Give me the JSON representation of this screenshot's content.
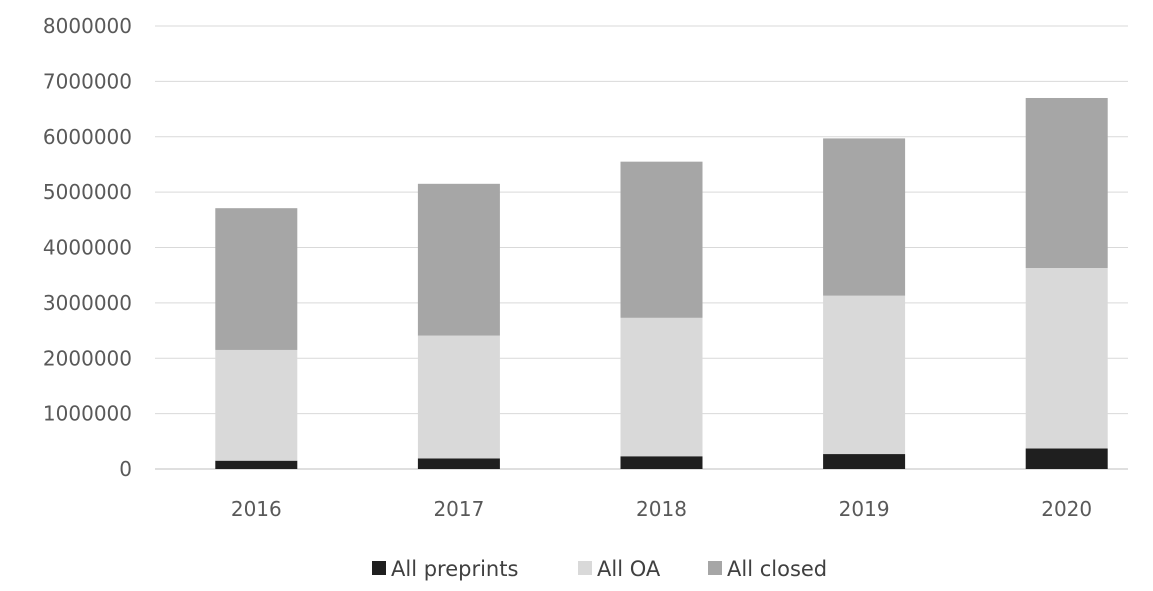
{
  "chart_data": {
    "type": "bar",
    "stacked": true,
    "title": "",
    "xlabel": "",
    "ylabel": "",
    "categories": [
      "2016",
      "2017",
      "2018",
      "2019",
      "2020"
    ],
    "ylim": [
      0,
      8000000
    ],
    "yticks": [
      0,
      1000000,
      2000000,
      3000000,
      4000000,
      5000000,
      6000000,
      7000000,
      8000000
    ],
    "ytick_labels": [
      "0",
      "1000000",
      "2000000",
      "3000000",
      "4000000",
      "5000000",
      "6000000",
      "7000000",
      "8000000"
    ],
    "grid": true,
    "legend_position": "bottom",
    "series": [
      {
        "name": "All preprints",
        "color": "#1f1f1f",
        "values": [
          150000,
          190000,
          230000,
          270000,
          370000
        ]
      },
      {
        "name": "All OA",
        "color": "#d9d9d9",
        "values": [
          2000000,
          2220000,
          2500000,
          2860000,
          3260000
        ]
      },
      {
        "name": "All closed",
        "color": "#a6a6a6",
        "values": [
          2560000,
          2740000,
          2820000,
          2840000,
          3070000
        ]
      }
    ]
  }
}
